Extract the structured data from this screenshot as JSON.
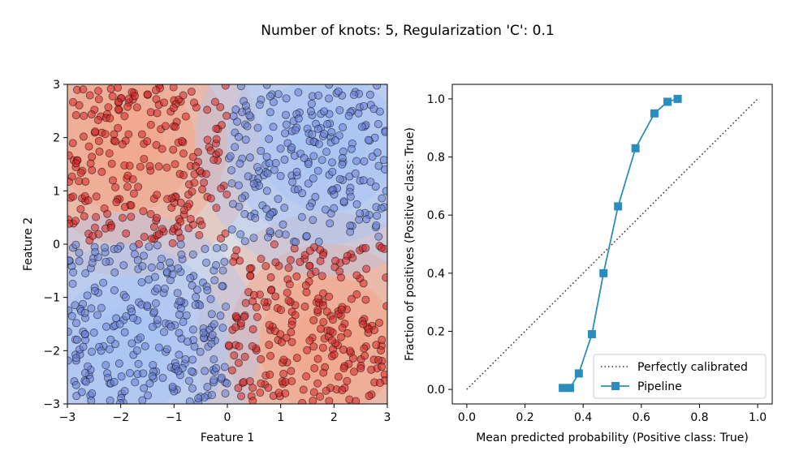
{
  "figure_title": "Number of knots: 5, Regularization 'C': 0.1",
  "colors": {
    "class_red": "#d62728",
    "class_blue": "#6a7fd6",
    "region_red": "#f2a58a",
    "region_blue": "#a9c4f5",
    "pipeline": "#2b8cbe",
    "reference": "#333333"
  },
  "chart_data": [
    {
      "type": "scatter",
      "title": "",
      "xlabel": "Feature 1",
      "ylabel": "Feature 2",
      "xlim": [
        -3,
        3
      ],
      "ylim": [
        -3,
        3
      ],
      "xticks": [
        "−3",
        "−2",
        "−1",
        "0",
        "1",
        "2",
        "3"
      ],
      "yticks": [
        "−3",
        "−2",
        "−1",
        "0",
        "1",
        "2",
        "3"
      ],
      "background": "decision function contour, coolwarm colormap",
      "classes": [
        {
          "label": "red",
          "rule": "feature1 * feature2 < 0"
        },
        {
          "label": "blue",
          "rule": "feature1 * feature2 > 0"
        }
      ],
      "n_points": 1000,
      "grid": false
    },
    {
      "type": "line",
      "title": "",
      "xlabel": "Mean predicted probability (Positive class: True)",
      "ylabel": "Fraction of positives (Positive class: True)",
      "xlim": [
        -0.05,
        1.05
      ],
      "ylim": [
        -0.05,
        1.05
      ],
      "xticks": [
        "0.0",
        "0.2",
        "0.4",
        "0.6",
        "0.8",
        "1.0"
      ],
      "yticks": [
        "0.0",
        "0.2",
        "0.4",
        "0.6",
        "0.8",
        "1.0"
      ],
      "legend_position": "lower-right",
      "grid": false,
      "series": [
        {
          "name": "Perfectly calibrated",
          "style": "dotted",
          "x": [
            0.0,
            1.0
          ],
          "y": [
            0.0,
            1.0
          ]
        },
        {
          "name": "Pipeline",
          "style": "solid-square-markers",
          "x": [
            0.33,
            0.355,
            0.385,
            0.43,
            0.47,
            0.52,
            0.58,
            0.645,
            0.69,
            0.725
          ],
          "y": [
            0.005,
            0.005,
            0.055,
            0.19,
            0.4,
            0.63,
            0.83,
            0.95,
            0.99,
            1.0
          ]
        }
      ]
    }
  ]
}
